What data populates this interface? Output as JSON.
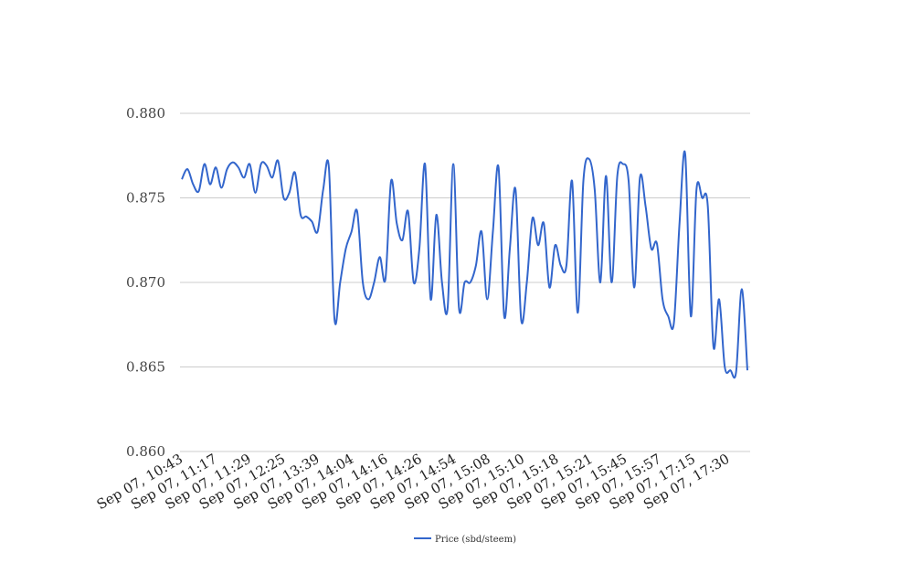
{
  "chart_data": {
    "type": "line",
    "title": "",
    "xlabel": "",
    "ylabel": "",
    "ylim": [
      0.86,
      0.88
    ],
    "y_ticks": [
      "0.860",
      "0.865",
      "0.870",
      "0.875",
      "0.880"
    ],
    "y_tick_values": [
      0.86,
      0.865,
      0.87,
      0.875,
      0.88
    ],
    "x_tick_labels": [
      "Sep 07, 10:43",
      "Sep 07, 11:17",
      "Sep 07, 11:29",
      "Sep 07, 12:25",
      "Sep 07, 13:39",
      "Sep 07, 14:04",
      "Sep 07, 14:16",
      "Sep 07, 14:26",
      "Sep 07, 14:54",
      "Sep 07, 15:08",
      "Sep 07, 15:10",
      "Sep 07, 15:18",
      "Sep 07, 15:21",
      "Sep 07, 15:45",
      "Sep 07, 15:57",
      "Sep 07, 17:15",
      "Sep 07, 17:30"
    ],
    "grid": true,
    "legend_position": "bottom",
    "series": [
      {
        "name": "Price (sbd/steem)",
        "color": "#3366cc",
        "values": [
          0.8761,
          0.8767,
          0.8758,
          0.8754,
          0.877,
          0.8758,
          0.8768,
          0.8756,
          0.8767,
          0.8771,
          0.8768,
          0.8762,
          0.877,
          0.8753,
          0.877,
          0.8769,
          0.8762,
          0.8772,
          0.875,
          0.8753,
          0.8765,
          0.874,
          0.8739,
          0.8736,
          0.873,
          0.8755,
          0.8768,
          0.8678,
          0.87,
          0.872,
          0.873,
          0.8742,
          0.87,
          0.869,
          0.87,
          0.8715,
          0.8702,
          0.876,
          0.8735,
          0.8725,
          0.8742,
          0.87,
          0.872,
          0.877,
          0.869,
          0.874,
          0.87,
          0.8685,
          0.877,
          0.8685,
          0.87,
          0.87,
          0.871,
          0.873,
          0.869,
          0.873,
          0.8768,
          0.868,
          0.872,
          0.8755,
          0.8678,
          0.87,
          0.8738,
          0.8722,
          0.8735,
          0.8697,
          0.8722,
          0.871,
          0.871,
          0.876,
          0.8682,
          0.876,
          0.8773,
          0.8755,
          0.87,
          0.8763,
          0.87,
          0.8763,
          0.877,
          0.876,
          0.8697,
          0.8762,
          0.8745,
          0.872,
          0.8723,
          0.869,
          0.868,
          0.8676,
          0.8735,
          0.8776,
          0.868,
          0.8755,
          0.875,
          0.8745,
          0.8662,
          0.869,
          0.865,
          0.8648,
          0.8647,
          0.8696,
          0.8648
        ]
      }
    ]
  }
}
